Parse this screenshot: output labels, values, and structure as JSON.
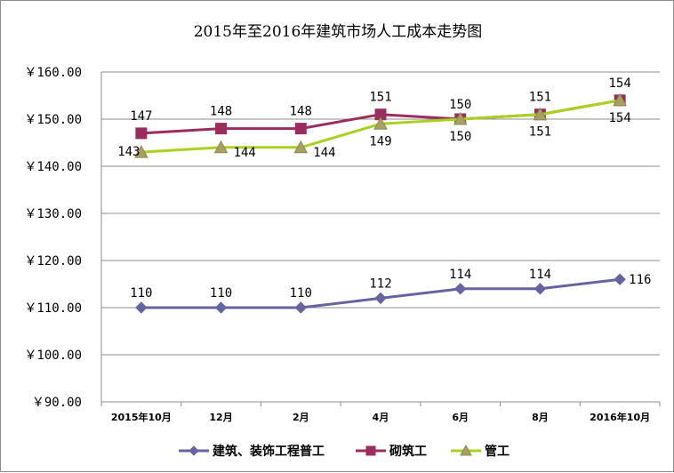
{
  "chart_data": {
    "type": "line",
    "title": "2015年至2016年建筑市场人工成本走势图",
    "categories": [
      "2015年10月",
      "12月",
      "2月",
      "4月",
      "6月",
      "8月",
      "2016年10月"
    ],
    "y_tick_labels": [
      "￥90.00",
      "￥100.00",
      "￥110.00",
      "￥120.00",
      "￥130.00",
      "￥140.00",
      "￥150.00",
      "￥160.00"
    ],
    "ylim": [
      90,
      160
    ],
    "y_tick_values": [
      90,
      100,
      110,
      120,
      130,
      140,
      150,
      160
    ],
    "grid": true,
    "legend_position": "bottom",
    "series": [
      {
        "name": "建筑、装饰工程普工",
        "marker": "diamond",
        "color": "#6464a0",
        "values": [
          110,
          110,
          110,
          112,
          114,
          114,
          116
        ],
        "labels": [
          "110",
          "110",
          "110",
          "112",
          "114",
          "114",
          "116"
        ]
      },
      {
        "name": "砌筑工",
        "marker": "square",
        "color": "#9b2d5e",
        "values": [
          147,
          148,
          148,
          151,
          150,
          151,
          154
        ],
        "labels": [
          "147",
          "148",
          "148",
          "151",
          "150",
          "151",
          "154"
        ]
      },
      {
        "name": "管工",
        "marker": "triangle",
        "color": "#a8d21e",
        "values": [
          143,
          144,
          144,
          149,
          150,
          151,
          154
        ],
        "labels": [
          "143",
          "144",
          "144",
          "149",
          "150",
          "151",
          "154"
        ]
      }
    ]
  }
}
